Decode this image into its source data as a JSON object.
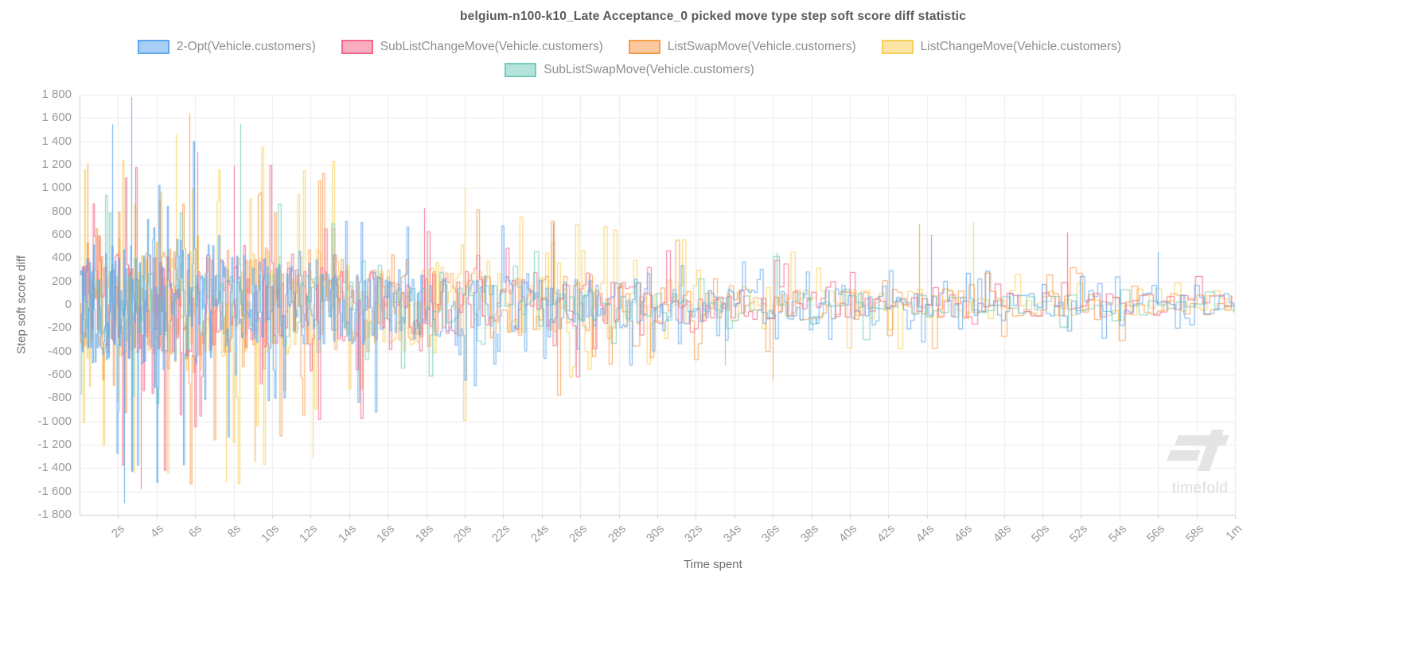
{
  "watermark": {
    "label": "timefold"
  },
  "chart_data": {
    "type": "line",
    "title": "belgium-n100-k10_Late Acceptance_0 picked move type step soft score diff statistic",
    "xlabel": "Time spent",
    "ylabel": "Step soft score diff",
    "grid": true,
    "legend_position": "top",
    "background": "#ffffff",
    "ylim": [
      -1800,
      1800
    ],
    "y_tick_step": 200,
    "y_ticks": [
      1800,
      1600,
      1400,
      1200,
      1000,
      800,
      600,
      400,
      200,
      0,
      -200,
      -400,
      -600,
      -800,
      -1000,
      -1200,
      -1400,
      -1600,
      -1800
    ],
    "y_tick_labels": [
      "1 800",
      "1 600",
      "1 400",
      "1 200",
      "1 000",
      "800",
      "600",
      "400",
      "200",
      "0",
      "-200",
      "-400",
      "-600",
      "-800",
      "-1 000",
      "-1 200",
      "-1 400",
      "-1 600",
      "-1 800"
    ],
    "x_range_seconds": [
      0,
      60
    ],
    "x_tick_seconds": [
      2,
      4,
      6,
      8,
      10,
      12,
      14,
      16,
      18,
      20,
      22,
      24,
      26,
      28,
      30,
      32,
      34,
      36,
      38,
      40,
      42,
      44,
      46,
      48,
      50,
      52,
      54,
      56,
      58,
      60
    ],
    "x_tick_labels": [
      "2s",
      "4s",
      "6s",
      "8s",
      "10s",
      "12s",
      "14s",
      "16s",
      "18s",
      "20s",
      "22s",
      "24s",
      "26s",
      "28s",
      "30s",
      "32s",
      "34s",
      "36s",
      "38s",
      "40s",
      "42s",
      "44s",
      "46s",
      "48s",
      "50s",
      "52s",
      "54s",
      "56s",
      "58s",
      "1m"
    ],
    "representation": "noisy step series; envelope = approximate max |step soft score diff| vs time (seconds)",
    "envelope_t": [
      0,
      5,
      10,
      15,
      20,
      25,
      30,
      35,
      40,
      45,
      50,
      55,
      60
    ],
    "series": [
      {
        "name": "2-Opt(Vehicle.customers)",
        "color": "#5ea7ee",
        "envelope": [
          1400,
          1800,
          1150,
          950,
          750,
          700,
          520,
          420,
          380,
          350,
          300,
          320,
          300
        ]
      },
      {
        "name": "SubListChangeMove(Vehicle.customers)",
        "color": "#f2688a",
        "envelope": [
          1300,
          1600,
          1250,
          1000,
          850,
          700,
          500,
          420,
          380,
          350,
          380,
          320,
          300
        ]
      },
      {
        "name": "ListSwapMove(Vehicle.customers)",
        "color": "#f79b4d",
        "envelope": [
          1300,
          1700,
          1300,
          1050,
          1000,
          800,
          600,
          450,
          420,
          480,
          380,
          330,
          300
        ]
      },
      {
        "name": "ListChangeMove(Vehicle.customers)",
        "color": "#f7cf5a",
        "envelope": [
          1350,
          1650,
          1500,
          1150,
          1000,
          850,
          620,
          500,
          450,
          480,
          350,
          330,
          300
        ]
      },
      {
        "name": "SubListSwapMove(Vehicle.customers)",
        "color": "#74ccba",
        "envelope": [
          900,
          1050,
          1000,
          800,
          650,
          520,
          480,
          460,
          350,
          300,
          280,
          260,
          250
        ]
      }
    ],
    "highlights": [
      {
        "series": 0,
        "t": 2.7,
        "value": 1780
      },
      {
        "series": 0,
        "t": 1.7,
        "value": 1545
      },
      {
        "series": 0,
        "t": 2.3,
        "value": -1700
      },
      {
        "series": 0,
        "t": 24.6,
        "value": 700
      },
      {
        "series": 0,
        "t": 44.2,
        "value": 600
      },
      {
        "series": 0,
        "t": 56.0,
        "value": 450
      },
      {
        "series": 1,
        "t": 6.1,
        "value": 1310
      },
      {
        "series": 1,
        "t": 3.2,
        "value": -1580
      },
      {
        "series": 1,
        "t": 17.9,
        "value": 830
      },
      {
        "series": 1,
        "t": 51.3,
        "value": 620
      },
      {
        "series": 1,
        "t": 8.0,
        "value": 1190
      },
      {
        "series": 2,
        "t": 5.7,
        "value": 1640
      },
      {
        "series": 2,
        "t": 0.4,
        "value": 1210
      },
      {
        "series": 2,
        "t": 9.1,
        "value": -1350
      },
      {
        "series": 2,
        "t": 43.6,
        "value": 690
      },
      {
        "series": 2,
        "t": 36.0,
        "value": -650
      },
      {
        "series": 3,
        "t": 7.6,
        "value": -1520
      },
      {
        "series": 3,
        "t": 12.1,
        "value": -1310
      },
      {
        "series": 3,
        "t": 46.4,
        "value": 710
      },
      {
        "series": 3,
        "t": 5.0,
        "value": 1460
      },
      {
        "series": 3,
        "t": 20.0,
        "value": 1000
      },
      {
        "series": 4,
        "t": 8.35,
        "value": 1550
      },
      {
        "series": 4,
        "t": 33.5,
        "value": -520
      },
      {
        "series": 4,
        "t": 36.2,
        "value": 450
      }
    ]
  }
}
